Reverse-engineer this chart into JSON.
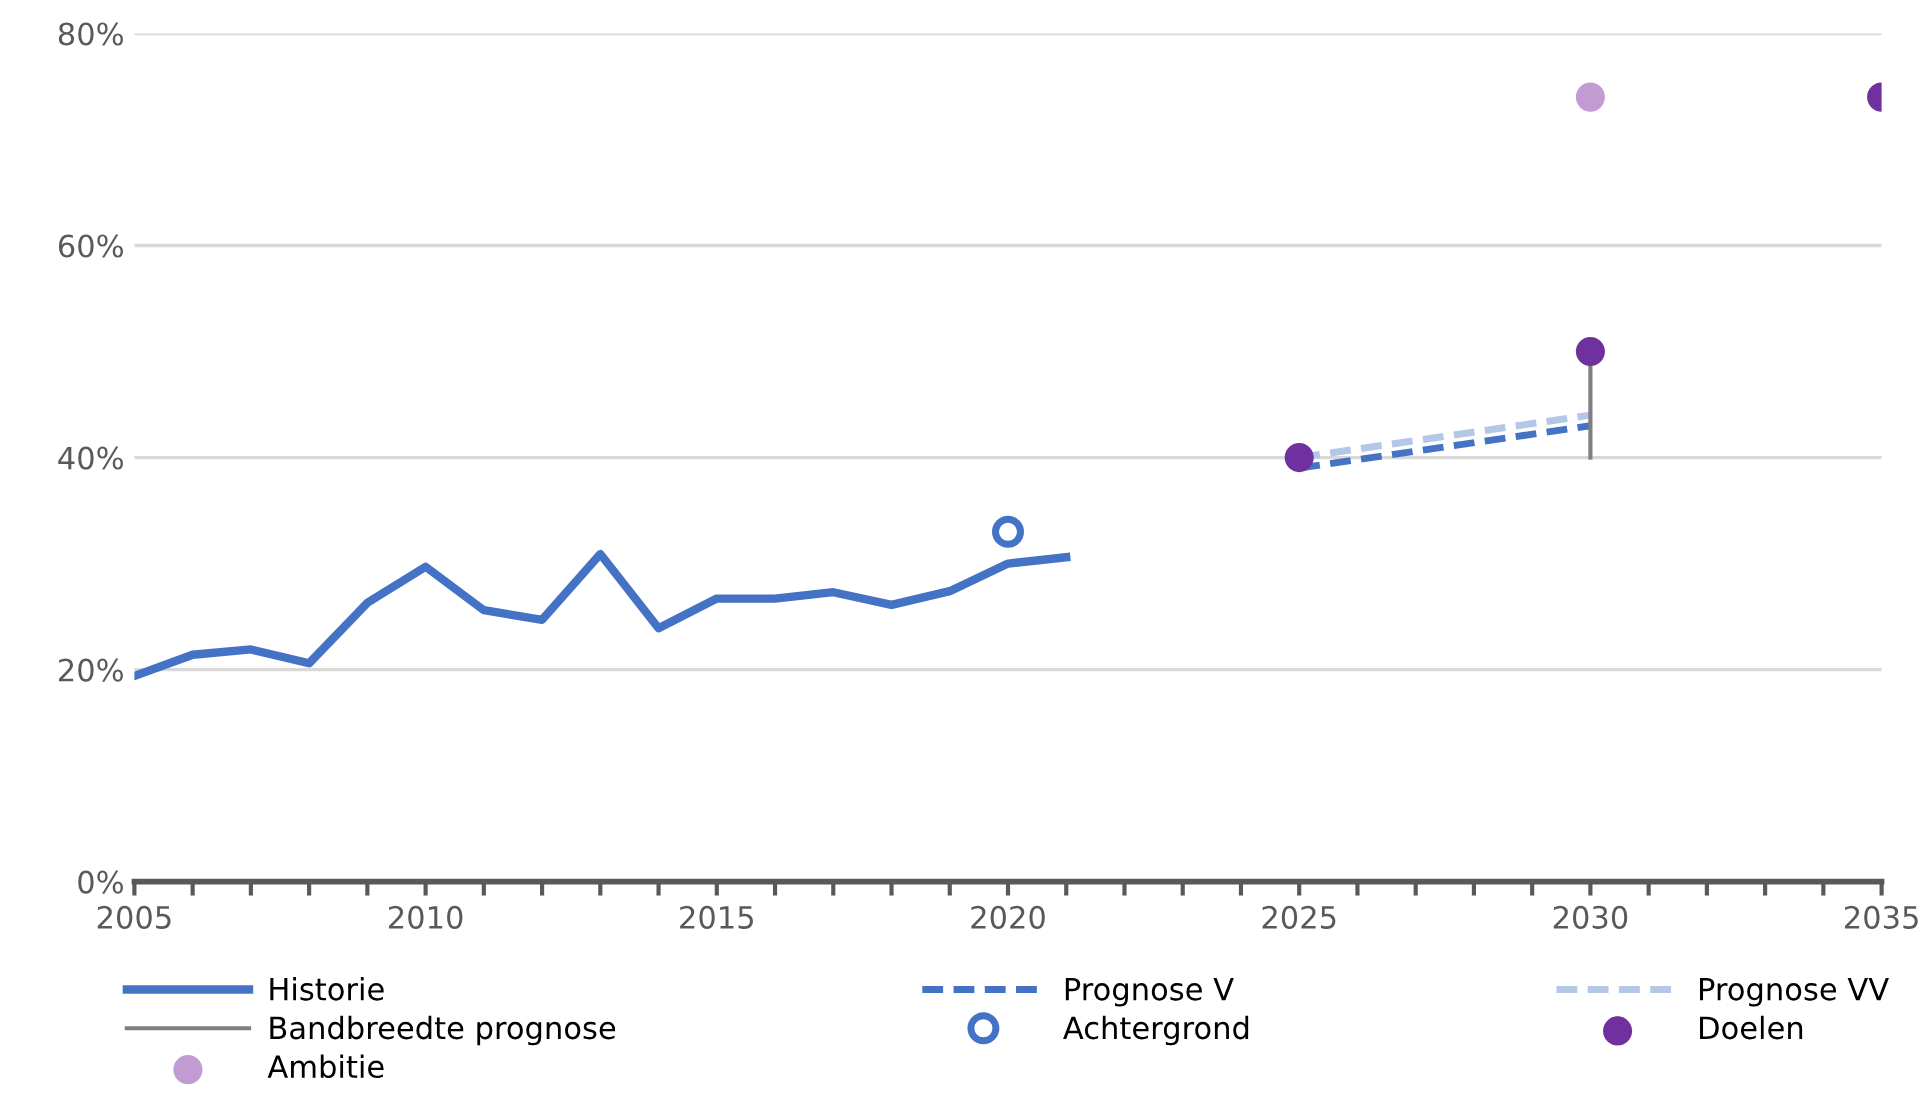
{
  "chart_data": {
    "type": "line",
    "xlim": [
      2005,
      2035
    ],
    "xticks": [
      2005,
      {
        "value": 2006,
        "label": null
      },
      {
        "value": 2007,
        "label": null
      },
      {
        "value": 2008,
        "label": null
      },
      {
        "value": 2009,
        "label": null
      },
      2010,
      {
        "value": 2011,
        "label": null
      },
      {
        "value": 2012,
        "label": null
      },
      {
        "value": 2013,
        "label": null
      },
      {
        "value": 2014,
        "label": null
      },
      2015,
      {
        "value": 2016,
        "label": null
      },
      {
        "value": 2017,
        "label": null
      },
      {
        "value": 2018,
        "label": null
      },
      {
        "value": 2019,
        "label": null
      },
      2020,
      {
        "value": 2021,
        "label": null
      },
      {
        "value": 2022,
        "label": null
      },
      {
        "value": 2023,
        "label": null
      },
      {
        "value": 2024,
        "label": null
      },
      2025,
      {
        "value": 2026,
        "label": null
      },
      {
        "value": 2027,
        "label": null
      },
      {
        "value": 2028,
        "label": null
      },
      {
        "value": 2029,
        "label": null
      },
      2030,
      {
        "value": 2031,
        "label": null
      },
      {
        "value": 2032,
        "label": null
      },
      {
        "value": 2033,
        "label": null
      },
      {
        "value": 2034,
        "label": null
      },
      2035
    ],
    "ylim": [
      0,
      80
    ],
    "yticks": [
      {
        "value": 0,
        "label": "0%"
      },
      {
        "value": 20,
        "label": "20%"
      },
      {
        "value": 40,
        "label": "40%"
      },
      {
        "value": 60,
        "label": "60%"
      },
      {
        "value": 80,
        "label": "80%"
      }
    ],
    "grid": "y",
    "legend": "bottom",
    "series": [
      {
        "name": "Historie",
        "line_style": "solid",
        "color": "#4472c4",
        "x": [
          2005,
          2006,
          2007,
          2008,
          2009,
          2010,
          2011,
          2012,
          2013,
          2014,
          2015,
          2016,
          2017,
          2018,
          2019,
          2020,
          2021
        ],
        "values": [
          19.4,
          21.4,
          21.9,
          20.6,
          26.3,
          29.7,
          25.6,
          24.7,
          30.9,
          23.9,
          26.7,
          26.7,
          27.3,
          26.1,
          27.4,
          30.0,
          30.6
        ]
      },
      {
        "name": "Prognose V",
        "line_style": "dashed",
        "color": "#4472c4",
        "x": [
          2025,
          2030
        ],
        "values": [
          39,
          43
        ]
      },
      {
        "name": "Prognose VV",
        "line_style": "dashed",
        "color": "#b4c7e7",
        "x": [
          2025,
          2030
        ],
        "values": [
          40,
          44
        ]
      },
      {
        "name": "Bandbreedte prognose",
        "line_style": "solid",
        "color": "#7f7f7f",
        "x": [
          2030,
          2030
        ],
        "values": [
          40,
          50
        ]
      },
      {
        "name": "Achtergrond",
        "marker": "circle",
        "color": "#4472c4",
        "x": [
          2020
        ],
        "values": [
          33
        ]
      },
      {
        "name": "Doelen",
        "type": "scatter",
        "marker": "circle",
        "color": "#7030a0",
        "x": [
          2025,
          2030,
          2035
        ],
        "values": [
          40,
          50,
          74
        ]
      },
      {
        "name": "Ambitie",
        "type": "scatter",
        "marker": "circle",
        "color": "#c39bd3",
        "x": [
          2030
        ],
        "values": [
          74
        ]
      }
    ]
  }
}
